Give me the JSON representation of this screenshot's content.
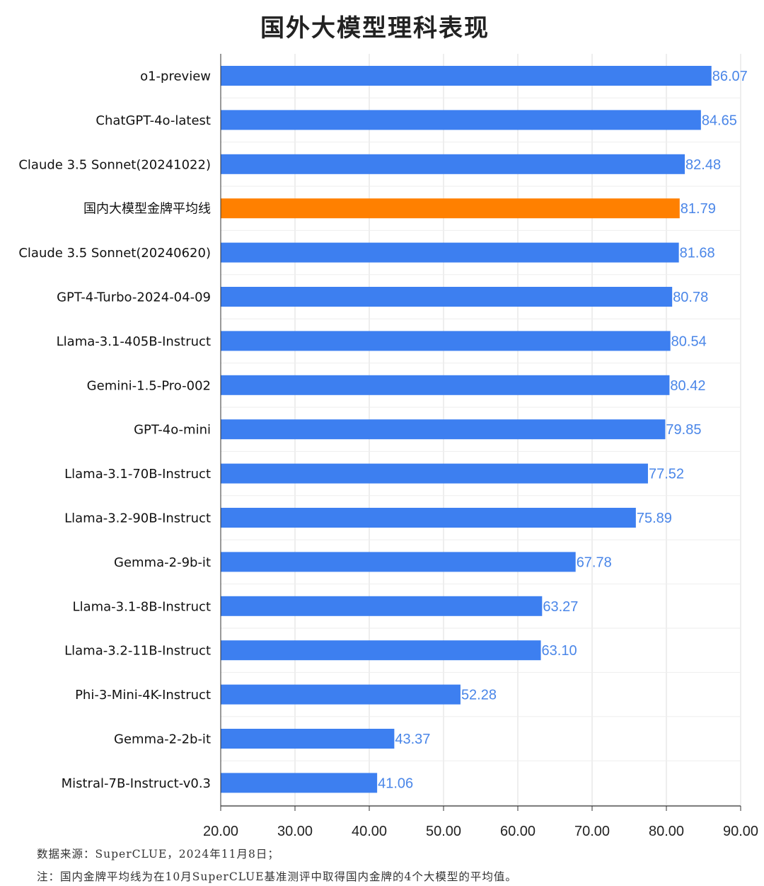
{
  "chart_data": {
    "type": "bar",
    "orientation": "horizontal",
    "title": "国外大模型理科表现",
    "categories": [
      "o1-preview",
      "ChatGPT-4o-latest",
      "Claude 3.5 Sonnet(20241022)",
      "国内大模型金牌平均线",
      "Claude 3.5 Sonnet(20240620)",
      "GPT-4-Turbo-2024-04-09",
      "Llama-3.1-405B-Instruct",
      "Gemini-1.5-Pro-002",
      "GPT-4o-mini",
      "Llama-3.1-70B-Instruct",
      "Llama-3.2-90B-Instruct",
      "Gemma-2-9b-it",
      "Llama-3.1-8B-Instruct",
      "Llama-3.2-11B-Instruct",
      "Phi-3-Mini-4K-Instruct",
      "Gemma-2-2b-it",
      "Mistral-7B-Instruct-v0.3"
    ],
    "values": [
      86.07,
      84.65,
      82.48,
      81.79,
      81.68,
      80.78,
      80.54,
      80.42,
      79.85,
      77.52,
      75.89,
      67.78,
      63.27,
      63.1,
      52.28,
      43.37,
      41.06
    ],
    "value_labels": [
      "86.07",
      "84.65",
      "82.48",
      "81.79",
      "81.68",
      "80.78",
      "80.54",
      "80.42",
      "79.85",
      "77.52",
      "75.89",
      "67.78",
      "63.27",
      "63.10",
      "52.28",
      "43.37",
      "41.06"
    ],
    "highlight_index": 3,
    "xlim": [
      20,
      90
    ],
    "xticks": [
      "20.00",
      "30.00",
      "40.00",
      "50.00",
      "60.00",
      "70.00",
      "80.00",
      "90.00"
    ],
    "grid": true,
    "colors": {
      "bar": "#3d7ff0",
      "highlight": "#ff8000",
      "value_label": "#4a86e8",
      "grid": "#dddddd",
      "axis": "#333333"
    }
  },
  "notes": {
    "source": "数据来源：SuperCLUE，2024年11月8日；",
    "footnote": "注：国内金牌平均线为在10月SuperCLUE基准测评中取得国内金牌的4个大模型的平均值。"
  }
}
